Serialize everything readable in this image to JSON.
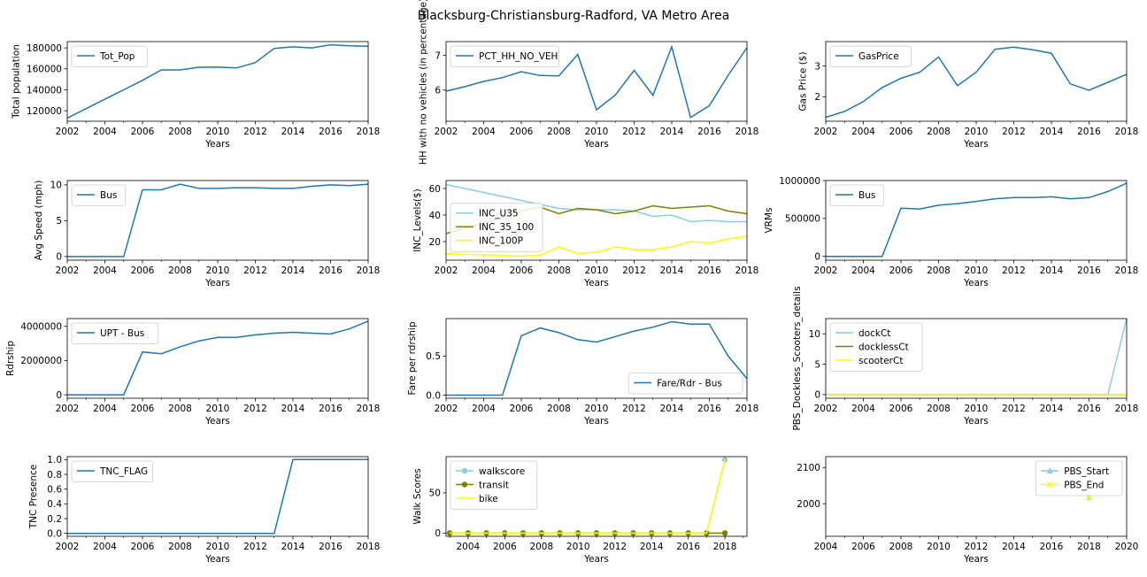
{
  "figure": {
    "title": "Blacksburg-Christiansburg-Radford, VA Metro Area"
  },
  "chart_data": [
    {
      "type": "line",
      "xlabel": "Years",
      "ylabel": "Total population",
      "xlim": [
        2002,
        2018
      ],
      "ylim": [
        110000,
        186000
      ],
      "xticks": [
        2002,
        2004,
        2006,
        2008,
        2010,
        2012,
        2014,
        2016,
        2018
      ],
      "yticks": [
        120000,
        140000,
        160000,
        180000
      ],
      "legend": "upper left",
      "x": [
        2002,
        2003,
        2004,
        2005,
        2006,
        2007,
        2008,
        2009,
        2010,
        2011,
        2012,
        2013,
        2014,
        2015,
        2016,
        2017,
        2018
      ],
      "series": [
        {
          "name": "Tot_Pop",
          "color": "#1f77b4",
          "values": [
            113000,
            122000,
            131000,
            140000,
            149000,
            159000,
            159000,
            161500,
            161700,
            160800,
            166000,
            179500,
            181000,
            180000,
            183000,
            182000,
            181500
          ]
        }
      ]
    },
    {
      "type": "line",
      "xlabel": "Years",
      "ylabel": "HH with no vehicles (in percentage)",
      "xlim": [
        2002,
        2018
      ],
      "ylim": [
        5.1,
        7.4
      ],
      "xticks": [
        2002,
        2004,
        2006,
        2008,
        2010,
        2012,
        2014,
        2016,
        2018
      ],
      "yticks": [
        6,
        7
      ],
      "legend": "upper left",
      "x": [
        2002,
        2003,
        2004,
        2005,
        2006,
        2007,
        2008,
        2009,
        2010,
        2011,
        2012,
        2013,
        2014,
        2015,
        2016,
        2017,
        2018
      ],
      "series": [
        {
          "name": "PCT_HH_NO_VEH",
          "color": "#1f77b4",
          "values": [
            5.97,
            6.1,
            6.25,
            6.36,
            6.53,
            6.42,
            6.41,
            7.03,
            5.43,
            5.86,
            6.57,
            5.85,
            7.25,
            5.21,
            5.55,
            6.43,
            7.22
          ]
        }
      ]
    },
    {
      "type": "line",
      "xlabel": "Years",
      "ylabel": "Gas Price ($)",
      "xlim": [
        2002,
        2018
      ],
      "ylim": [
        1.2,
        3.8
      ],
      "xticks": [
        2002,
        2004,
        2006,
        2008,
        2010,
        2012,
        2014,
        2016,
        2018
      ],
      "yticks": [
        2,
        3
      ],
      "legend": "upper left",
      "x": [
        2002,
        2003,
        2004,
        2005,
        2006,
        2007,
        2008,
        2009,
        2010,
        2011,
        2012,
        2013,
        2014,
        2015,
        2016,
        2017,
        2018
      ],
      "series": [
        {
          "name": "GasPrice",
          "color": "#1f77b4",
          "values": [
            1.33,
            1.52,
            1.84,
            2.3,
            2.6,
            2.8,
            3.3,
            2.36,
            2.8,
            3.55,
            3.62,
            3.53,
            3.42,
            2.42,
            2.21,
            2.47,
            2.73
          ]
        }
      ]
    },
    {
      "type": "line",
      "xlabel": "Years",
      "ylabel": "Avg Speed (mph)",
      "xlim": [
        2002,
        2018
      ],
      "ylim": [
        -0.5,
        10.6
      ],
      "xticks": [
        2002,
        2004,
        2006,
        2008,
        2010,
        2012,
        2014,
        2016,
        2018
      ],
      "yticks": [
        0,
        5,
        10
      ],
      "legend": "upper left",
      "x": [
        2002,
        2003,
        2004,
        2005,
        2006,
        2007,
        2008,
        2009,
        2010,
        2011,
        2012,
        2013,
        2014,
        2015,
        2016,
        2017,
        2018
      ],
      "series": [
        {
          "name": "Bus",
          "color": "#1f77b4",
          "values": [
            0,
            0,
            0,
            0,
            9.3,
            9.3,
            10.1,
            9.5,
            9.5,
            9.6,
            9.6,
            9.5,
            9.5,
            9.8,
            10.0,
            9.9,
            10.1
          ]
        }
      ]
    },
    {
      "type": "line",
      "xlabel": "Years",
      "ylabel": "INC_Levels($)",
      "xlim": [
        2002,
        2018
      ],
      "ylim": [
        6,
        66
      ],
      "xticks": [
        2002,
        2004,
        2006,
        2008,
        2010,
        2012,
        2014,
        2016,
        2018
      ],
      "yticks": [
        20,
        40,
        60
      ],
      "legend": "center left",
      "x": [
        2002,
        2003,
        2004,
        2005,
        2006,
        2007,
        2008,
        2009,
        2010,
        2011,
        2012,
        2013,
        2014,
        2015,
        2016,
        2017,
        2018
      ],
      "series": [
        {
          "name": "INC_U35",
          "color": "#87ceeb",
          "values": [
            63,
            60,
            57,
            54,
            51,
            48,
            45,
            44,
            44,
            44,
            43,
            39,
            40,
            35,
            36,
            35,
            35
          ]
        },
        {
          "name": "INC_35_100",
          "color": "#808000",
          "values": [
            26,
            30,
            34,
            38,
            43,
            46,
            41,
            45,
            44,
            41,
            43,
            47,
            45,
            46,
            47,
            43,
            41
          ]
        },
        {
          "name": "INC_100P",
          "color": "#ffff00",
          "values": [
            11,
            10.5,
            10,
            9.5,
            9,
            10,
            16,
            11,
            12,
            16,
            14,
            14,
            16,
            20,
            19,
            22,
            24
          ]
        }
      ]
    },
    {
      "type": "line",
      "xlabel": "Years",
      "ylabel": "VRMs",
      "xlim": [
        2002,
        2018
      ],
      "ylim": [
        -50000,
        1000000
      ],
      "xticks": [
        2002,
        2004,
        2006,
        2008,
        2010,
        2012,
        2014,
        2016,
        2018
      ],
      "yticks": [
        0,
        500000,
        1000000
      ],
      "legend": "upper left",
      "x": [
        2002,
        2003,
        2004,
        2005,
        2006,
        2007,
        2008,
        2009,
        2010,
        2011,
        2012,
        2013,
        2014,
        2015,
        2016,
        2017,
        2018
      ],
      "series": [
        {
          "name": "Bus",
          "color": "#1f77b4",
          "values": [
            0,
            0,
            0,
            0,
            635000,
            625000,
            675000,
            695000,
            725000,
            760000,
            775000,
            775000,
            785000,
            760000,
            775000,
            855000,
            965000
          ]
        }
      ]
    },
    {
      "type": "line",
      "xlabel": "Years",
      "ylabel": "Rdrship",
      "xlim": [
        2002,
        2018
      ],
      "ylim": [
        -200000,
        4450000
      ],
      "xticks": [
        2002,
        2004,
        2006,
        2008,
        2010,
        2012,
        2014,
        2016,
        2018
      ],
      "yticks": [
        0,
        2000000,
        4000000
      ],
      "legend": "upper left",
      "x": [
        2002,
        2003,
        2004,
        2005,
        2006,
        2007,
        2008,
        2009,
        2010,
        2011,
        2012,
        2013,
        2014,
        2015,
        2016,
        2017,
        2018
      ],
      "series": [
        {
          "name": "UPT - Bus",
          "color": "#1f77b4",
          "values": [
            0,
            0,
            0,
            0,
            2500000,
            2400000,
            2800000,
            3150000,
            3350000,
            3350000,
            3500000,
            3600000,
            3650000,
            3600000,
            3550000,
            3850000,
            4300000
          ]
        }
      ]
    },
    {
      "type": "line",
      "xlabel": "Years",
      "ylabel": "Fare per rdrship",
      "xlim": [
        2002,
        2018
      ],
      "ylim": [
        -0.04,
        0.98
      ],
      "xticks": [
        2002,
        2004,
        2006,
        2008,
        2010,
        2012,
        2014,
        2016,
        2018
      ],
      "yticks": [
        0.0,
        0.5
      ],
      "legend": "lower right",
      "x": [
        2002,
        2003,
        2004,
        2005,
        2006,
        2007,
        2008,
        2009,
        2010,
        2011,
        2012,
        2013,
        2014,
        2015,
        2016,
        2017,
        2018
      ],
      "series": [
        {
          "name": "Fare/Rdr - Bus",
          "color": "#1f77b4",
          "values": [
            0,
            0,
            0,
            0,
            0.76,
            0.86,
            0.8,
            0.71,
            0.68,
            0.75,
            0.82,
            0.87,
            0.94,
            0.91,
            0.91,
            0.5,
            0.21
          ]
        }
      ]
    },
    {
      "type": "line",
      "xlabel": "Years",
      "ylabel": "PBS_Dockless_Scooters_details",
      "xlim": [
        2002,
        2018
      ],
      "ylim": [
        -0.6,
        12.5
      ],
      "xticks": [
        2002,
        2004,
        2006,
        2008,
        2010,
        2012,
        2014,
        2016,
        2018
      ],
      "yticks": [
        0,
        5,
        10
      ],
      "legend": "upper left",
      "x": [
        2002,
        2003,
        2004,
        2005,
        2006,
        2007,
        2008,
        2009,
        2010,
        2011,
        2012,
        2013,
        2014,
        2015,
        2016,
        2017,
        2018
      ],
      "series": [
        {
          "name": "dockCt",
          "color": "#87ceeb",
          "values": [
            0,
            0,
            0,
            0,
            0,
            0,
            0,
            0,
            0,
            0,
            0,
            0,
            0,
            0,
            0,
            0,
            12.5
          ]
        },
        {
          "name": "docklessCt",
          "color": "#808000",
          "values": [
            0,
            0,
            0,
            0,
            0,
            0,
            0,
            0,
            0,
            0,
            0,
            0,
            0,
            0,
            0,
            0,
            0
          ]
        },
        {
          "name": "scooterCt",
          "color": "#ffff00",
          "values": [
            0,
            0,
            0,
            0,
            0,
            0,
            0,
            0,
            0,
            0,
            0,
            0,
            0,
            0,
            0,
            0,
            0
          ]
        }
      ]
    },
    {
      "type": "line",
      "xlabel": "Years",
      "ylabel": "TNC Presence",
      "xlim": [
        2002,
        2018
      ],
      "ylim": [
        -0.04,
        1.04
      ],
      "xticks": [
        2002,
        2004,
        2006,
        2008,
        2010,
        2012,
        2014,
        2016,
        2018
      ],
      "yticks": [
        0.0,
        0.2,
        0.4,
        0.6,
        0.8,
        1.0
      ],
      "legend": "upper left",
      "x": [
        2002,
        2003,
        2004,
        2005,
        2006,
        2007,
        2008,
        2009,
        2010,
        2011,
        2012,
        2013,
        2014,
        2015,
        2016,
        2017,
        2018
      ],
      "series": [
        {
          "name": "TNC_FLAG",
          "color": "#1f77b4",
          "values": [
            0,
            0,
            0,
            0,
            0,
            0,
            0,
            0,
            0,
            0,
            0,
            0,
            1,
            1,
            1,
            1,
            1
          ]
        }
      ]
    },
    {
      "type": "line",
      "xlabel": "Years",
      "ylabel": "Walk Scores",
      "xlim": [
        2002.8,
        2019.2
      ],
      "ylim": [
        -4,
        95
      ],
      "xticks": [
        2004,
        2006,
        2008,
        2010,
        2012,
        2014,
        2016,
        2018
      ],
      "yticks": [
        0,
        50
      ],
      "legend": "upper left",
      "x": [
        2003,
        2004,
        2005,
        2006,
        2007,
        2008,
        2009,
        2010,
        2011,
        2012,
        2013,
        2014,
        2015,
        2016,
        2017,
        2018
      ],
      "series": [
        {
          "name": "walkscore",
          "color": "#87ceeb",
          "marker": "circle",
          "values": [
            0,
            0,
            0,
            0,
            0,
            0,
            0,
            0,
            0,
            0,
            0,
            0,
            0,
            0,
            0,
            91
          ]
        },
        {
          "name": "transit",
          "color": "#808000",
          "marker": "circle",
          "values": [
            0,
            0,
            0,
            0,
            0,
            0,
            0,
            0,
            0,
            0,
            0,
            0,
            0,
            0,
            0,
            0
          ]
        },
        {
          "name": "bike",
          "color": "#ffff00",
          "marker": "none",
          "values": [
            0,
            0,
            0,
            0,
            0,
            0,
            0,
            0,
            0,
            0,
            0,
            0,
            0,
            0,
            0,
            91
          ]
        }
      ]
    },
    {
      "type": "line",
      "xlabel": "Years",
      "ylabel": "",
      "xlim": [
        2004,
        2020
      ],
      "ylim": [
        1910,
        2130
      ],
      "xticks": [
        2004,
        2006,
        2008,
        2010,
        2012,
        2014,
        2016,
        2018,
        2020
      ],
      "yticks": [
        2000,
        2100
      ],
      "legend": "upper right",
      "x": [
        2018
      ],
      "series": [
        {
          "name": "PBS_Start",
          "color": "#87ceeb",
          "marker": "triangle",
          "values": [
            2018
          ]
        },
        {
          "name": "PBS_End",
          "color": "#ffff00",
          "marker": "x",
          "values": [
            2018
          ]
        }
      ]
    }
  ]
}
